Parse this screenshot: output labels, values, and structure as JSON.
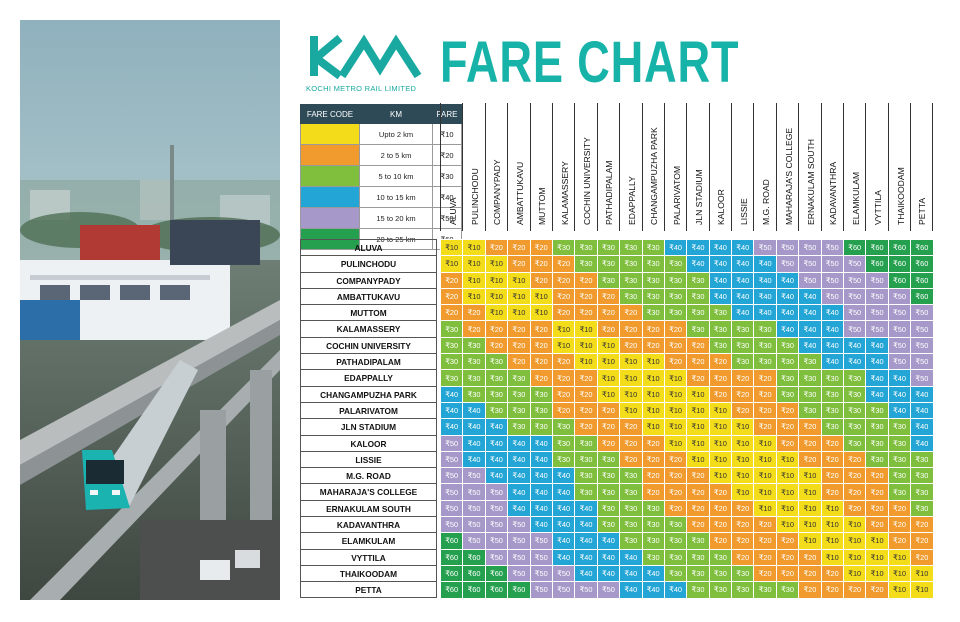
{
  "header": {
    "logo_text": "KOCHI METRO RAIL LIMITED",
    "title": "FARE CHART"
  },
  "colors": {
    "brand": "#17b3a9",
    "F10": "#f3dc1a",
    "F20": "#f19a2d",
    "F30": "#7fbf3d",
    "F40": "#23a5d6",
    "F50": "#a698c8",
    "F60": "#24a04e"
  },
  "legend": {
    "headers": [
      "FARE CODE",
      "KM",
      "FARE"
    ],
    "rows": [
      {
        "code": "F10",
        "km": "Upto 2 km",
        "fare": "₹10"
      },
      {
        "code": "F20",
        "km": "2 to 5 km",
        "fare": "₹20"
      },
      {
        "code": "F30",
        "km": "5 to 10 km",
        "fare": "₹30"
      },
      {
        "code": "F40",
        "km": "10 to 15 km",
        "fare": "₹40"
      },
      {
        "code": "F50",
        "km": "15 to 20 km",
        "fare": "₹50"
      },
      {
        "code": "F60",
        "km": "20 to 25 km",
        "fare": "₹60"
      }
    ]
  },
  "column_stations": [
    "ALUVA",
    "PULINCHODU",
    "COMPANYPADY",
    "AMBATTUKAVU",
    "MUTTOM",
    "KALAMASSERY",
    "COCHIN UNIVERSITY",
    "PATHADIPALAM",
    "EDAPPALLY",
    "CHANGAMPUZHA PARK",
    "PALARIVATOM",
    "JLN STADIUM",
    "KALOOR",
    "LISSIE",
    "M.G. ROAD",
    "MAHARAJA'S COLLEGE",
    "ERNAKULAM SOUTH",
    "KADAVANTHRA",
    "ELAMKULAM",
    "VYTTILA",
    "THAIKOODAM",
    "PETTA"
  ],
  "row_stations": [
    "ALUVA",
    "PULINCHODU",
    "COMPANYPADY",
    "AMBATTUKAVU",
    "MUTTOM",
    "KALAMASSERY",
    "COCHIN UNIVERSITY",
    "PATHADIPALAM",
    "EDAPPALLY",
    "CHANGAMPUZHA PARK",
    "PALARIVATOM",
    "JLN STADIUM",
    "KALOOR",
    "LISSIE",
    "M.G. ROAD",
    "MAHARAJA'S COLLEGE",
    "ERNAKULAM SOUTH",
    "KADAVANTHRA",
    "ELAMKULAM",
    "VYTTILA",
    "THAIKOODAM",
    "PETTA"
  ],
  "fares": [
    [
      10,
      10,
      20,
      20,
      20,
      30,
      30,
      30,
      30,
      30,
      40,
      40,
      40,
      40,
      50,
      50,
      50,
      50,
      60,
      60,
      60,
      60
    ],
    [
      10,
      10,
      10,
      20,
      20,
      20,
      30,
      30,
      30,
      30,
      30,
      40,
      40,
      40,
      40,
      50,
      50,
      50,
      50,
      60,
      60,
      60
    ],
    [
      20,
      10,
      10,
      10,
      20,
      20,
      20,
      30,
      30,
      30,
      30,
      30,
      40,
      40,
      40,
      40,
      50,
      50,
      50,
      50,
      60,
      60
    ],
    [
      20,
      10,
      10,
      10,
      10,
      20,
      20,
      20,
      30,
      30,
      30,
      30,
      40,
      40,
      40,
      40,
      40,
      50,
      50,
      50,
      50,
      60
    ],
    [
      20,
      20,
      10,
      10,
      10,
      20,
      20,
      20,
      20,
      30,
      30,
      30,
      30,
      40,
      40,
      40,
      40,
      40,
      50,
      50,
      50,
      50
    ],
    [
      30,
      20,
      20,
      20,
      20,
      10,
      10,
      20,
      20,
      20,
      20,
      30,
      30,
      30,
      30,
      40,
      40,
      40,
      50,
      50,
      50,
      50
    ],
    [
      30,
      30,
      20,
      20,
      20,
      10,
      10,
      10,
      20,
      20,
      20,
      20,
      30,
      30,
      30,
      30,
      40,
      40,
      40,
      40,
      50,
      50
    ],
    [
      30,
      30,
      30,
      20,
      20,
      20,
      10,
      10,
      10,
      10,
      20,
      20,
      20,
      30,
      30,
      30,
      30,
      40,
      40,
      40,
      50,
      50
    ],
    [
      30,
      30,
      30,
      30,
      20,
      20,
      20,
      10,
      10,
      10,
      10,
      20,
      20,
      20,
      20,
      30,
      30,
      30,
      30,
      40,
      40,
      50
    ],
    [
      40,
      30,
      30,
      30,
      30,
      20,
      20,
      10,
      10,
      10,
      10,
      10,
      20,
      20,
      20,
      30,
      30,
      30,
      30,
      40,
      40,
      40
    ],
    [
      40,
      40,
      30,
      30,
      30,
      20,
      20,
      20,
      10,
      10,
      10,
      10,
      10,
      20,
      20,
      20,
      30,
      30,
      30,
      30,
      40,
      40
    ],
    [
      40,
      40,
      40,
      30,
      30,
      30,
      20,
      20,
      20,
      10,
      10,
      10,
      10,
      10,
      20,
      20,
      20,
      30,
      30,
      30,
      30,
      40
    ],
    [
      50,
      40,
      40,
      40,
      40,
      30,
      30,
      20,
      20,
      20,
      10,
      10,
      10,
      10,
      10,
      20,
      20,
      20,
      30,
      30,
      30,
      40
    ],
    [
      50,
      40,
      40,
      40,
      40,
      30,
      30,
      30,
      20,
      20,
      20,
      10,
      10,
      10,
      10,
      10,
      20,
      20,
      20,
      30,
      30,
      30
    ],
    [
      50,
      50,
      40,
      40,
      40,
      40,
      30,
      30,
      30,
      20,
      20,
      20,
      10,
      10,
      10,
      10,
      10,
      20,
      20,
      20,
      30,
      30
    ],
    [
      50,
      50,
      50,
      40,
      40,
      40,
      30,
      30,
      30,
      20,
      20,
      20,
      20,
      10,
      10,
      10,
      10,
      20,
      20,
      20,
      30,
      30
    ],
    [
      50,
      50,
      50,
      40,
      40,
      40,
      40,
      30,
      30,
      30,
      20,
      20,
      20,
      20,
      10,
      10,
      10,
      10,
      20,
      20,
      20,
      30
    ],
    [
      50,
      50,
      50,
      50,
      40,
      40,
      40,
      30,
      30,
      30,
      30,
      20,
      20,
      20,
      20,
      10,
      10,
      10,
      10,
      20,
      20,
      20
    ],
    [
      60,
      50,
      50,
      50,
      50,
      40,
      40,
      40,
      30,
      30,
      30,
      30,
      20,
      20,
      20,
      20,
      10,
      10,
      10,
      10,
      20,
      20
    ],
    [
      60,
      60,
      50,
      50,
      50,
      40,
      40,
      40,
      40,
      30,
      30,
      30,
      30,
      20,
      20,
      20,
      20,
      10,
      10,
      10,
      10,
      20
    ],
    [
      60,
      60,
      60,
      50,
      50,
      50,
      40,
      40,
      40,
      40,
      30,
      30,
      30,
      30,
      20,
      20,
      20,
      20,
      10,
      10,
      10,
      10
    ],
    [
      60,
      60,
      60,
      60,
      50,
      50,
      50,
      50,
      40,
      40,
      40,
      30,
      30,
      30,
      30,
      30,
      20,
      20,
      20,
      20,
      10,
      10
    ]
  ]
}
